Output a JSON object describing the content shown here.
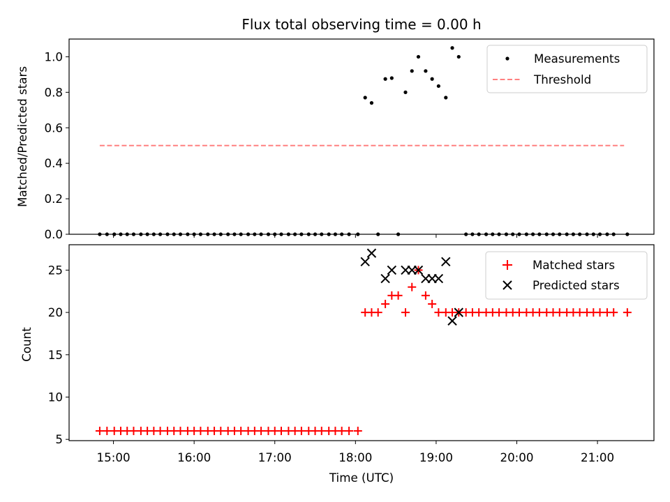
{
  "chart_data": {
    "title": "Flux total observing time = 0.00 h",
    "xlabel": "Time (UTC)",
    "x_unit": "hours UTC",
    "xlim": [
      14.45,
      21.7
    ],
    "xticks": [
      {
        "value": 15,
        "label": "15:00"
      },
      {
        "value": 16,
        "label": "16:00"
      },
      {
        "value": 17,
        "label": "17:00"
      },
      {
        "value": 18,
        "label": "18:00"
      },
      {
        "value": 19,
        "label": "19:00"
      },
      {
        "value": 20,
        "label": "20:00"
      },
      {
        "value": 21,
        "label": "21:00"
      }
    ],
    "top": {
      "type": "scatter",
      "ylabel": "Matched/Predicted stars",
      "ylim": [
        0,
        1.1
      ],
      "yticks": [
        "0.0",
        "0.2",
        "0.4",
        "0.6",
        "0.8",
        "1.0"
      ],
      "legend_position": "top-right",
      "series": [
        {
          "name": "Measurements",
          "marker": "dot",
          "color": "#000000",
          "points": [
            [
              14.83,
              0
            ],
            [
              14.92,
              0
            ],
            [
              15.01,
              0
            ],
            [
              15.09,
              0
            ],
            [
              15.17,
              0
            ],
            [
              15.25,
              0
            ],
            [
              15.34,
              0
            ],
            [
              15.42,
              0
            ],
            [
              15.5,
              0
            ],
            [
              15.58,
              0
            ],
            [
              15.67,
              0
            ],
            [
              15.75,
              0
            ],
            [
              15.83,
              0
            ],
            [
              15.92,
              0
            ],
            [
              16.0,
              0
            ],
            [
              16.08,
              0
            ],
            [
              16.17,
              0
            ],
            [
              16.25,
              0
            ],
            [
              16.33,
              0
            ],
            [
              16.42,
              0
            ],
            [
              16.5,
              0
            ],
            [
              16.58,
              0
            ],
            [
              16.67,
              0
            ],
            [
              16.75,
              0
            ],
            [
              16.83,
              0
            ],
            [
              16.92,
              0
            ],
            [
              17.0,
              0
            ],
            [
              17.08,
              0
            ],
            [
              17.17,
              0
            ],
            [
              17.25,
              0
            ],
            [
              17.33,
              0
            ],
            [
              17.42,
              0
            ],
            [
              17.5,
              0
            ],
            [
              17.58,
              0
            ],
            [
              17.67,
              0
            ],
            [
              17.75,
              0
            ],
            [
              17.83,
              0
            ],
            [
              17.92,
              0
            ],
            [
              18.03,
              0
            ],
            [
              18.12,
              0.77
            ],
            [
              18.2,
              0.74
            ],
            [
              18.28,
              0
            ],
            [
              18.37,
              0.875
            ],
            [
              18.45,
              0.88
            ],
            [
              18.53,
              0
            ],
            [
              18.62,
              0.8
            ],
            [
              18.7,
              0.92
            ],
            [
              18.78,
              1.0
            ],
            [
              18.87,
              0.92
            ],
            [
              18.95,
              0.875
            ],
            [
              19.03,
              0.835
            ],
            [
              19.12,
              0.77
            ],
            [
              19.2,
              1.05
            ],
            [
              19.28,
              1.0
            ],
            [
              19.37,
              0
            ],
            [
              19.45,
              0
            ],
            [
              19.53,
              0
            ],
            [
              19.62,
              0
            ],
            [
              19.7,
              0
            ],
            [
              19.78,
              0
            ],
            [
              19.87,
              0
            ],
            [
              19.95,
              0
            ],
            [
              20.03,
              0
            ],
            [
              20.12,
              0
            ],
            [
              20.2,
              0
            ],
            [
              20.28,
              0
            ],
            [
              20.37,
              0
            ],
            [
              20.45,
              0
            ],
            [
              20.53,
              0
            ],
            [
              20.62,
              0
            ],
            [
              20.7,
              0
            ],
            [
              20.78,
              0
            ],
            [
              20.87,
              0
            ],
            [
              20.95,
              0
            ],
            [
              21.03,
              0
            ],
            [
              21.12,
              0
            ],
            [
              21.2,
              0
            ],
            [
              21.37,
              0
            ]
          ]
        },
        {
          "name": "Threshold",
          "type": "line",
          "style": "dashed",
          "color": "#ff8080",
          "x": [
            14.83,
            21.33
          ],
          "y": [
            0.5,
            0.5
          ]
        }
      ]
    },
    "bottom": {
      "type": "scatter",
      "ylabel": "Count",
      "ylim": [
        4.85,
        28
      ],
      "yticks": [
        5,
        10,
        15,
        20,
        25
      ],
      "legend_position": "top-right",
      "series": [
        {
          "name": "Matched stars",
          "marker": "plus",
          "color": "#ff0000",
          "points": [
            [
              14.83,
              6
            ],
            [
              14.92,
              6
            ],
            [
              15.01,
              6
            ],
            [
              15.09,
              6
            ],
            [
              15.17,
              6
            ],
            [
              15.25,
              6
            ],
            [
              15.34,
              6
            ],
            [
              15.42,
              6
            ],
            [
              15.5,
              6
            ],
            [
              15.58,
              6
            ],
            [
              15.67,
              6
            ],
            [
              15.75,
              6
            ],
            [
              15.83,
              6
            ],
            [
              15.92,
              6
            ],
            [
              16.0,
              6
            ],
            [
              16.08,
              6
            ],
            [
              16.17,
              6
            ],
            [
              16.25,
              6
            ],
            [
              16.33,
              6
            ],
            [
              16.42,
              6
            ],
            [
              16.5,
              6
            ],
            [
              16.58,
              6
            ],
            [
              16.67,
              6
            ],
            [
              16.75,
              6
            ],
            [
              16.83,
              6
            ],
            [
              16.92,
              6
            ],
            [
              17.0,
              6
            ],
            [
              17.08,
              6
            ],
            [
              17.17,
              6
            ],
            [
              17.25,
              6
            ],
            [
              17.33,
              6
            ],
            [
              17.42,
              6
            ],
            [
              17.5,
              6
            ],
            [
              17.58,
              6
            ],
            [
              17.67,
              6
            ],
            [
              17.75,
              6
            ],
            [
              17.83,
              6
            ],
            [
              17.92,
              6
            ],
            [
              18.03,
              6
            ],
            [
              18.12,
              20
            ],
            [
              18.2,
              20
            ],
            [
              18.28,
              20
            ],
            [
              18.37,
              21
            ],
            [
              18.45,
              22
            ],
            [
              18.53,
              22
            ],
            [
              18.62,
              20
            ],
            [
              18.7,
              23
            ],
            [
              18.78,
              25
            ],
            [
              18.87,
              22
            ],
            [
              18.95,
              21
            ],
            [
              19.03,
              20
            ],
            [
              19.12,
              20
            ],
            [
              19.2,
              20
            ],
            [
              19.28,
              20
            ],
            [
              19.37,
              20
            ],
            [
              19.45,
              20
            ],
            [
              19.53,
              20
            ],
            [
              19.62,
              20
            ],
            [
              19.7,
              20
            ],
            [
              19.78,
              20
            ],
            [
              19.87,
              20
            ],
            [
              19.95,
              20
            ],
            [
              20.03,
              20
            ],
            [
              20.12,
              20
            ],
            [
              20.2,
              20
            ],
            [
              20.28,
              20
            ],
            [
              20.37,
              20
            ],
            [
              20.45,
              20
            ],
            [
              20.53,
              20
            ],
            [
              20.62,
              20
            ],
            [
              20.7,
              20
            ],
            [
              20.78,
              20
            ],
            [
              20.87,
              20
            ],
            [
              20.95,
              20
            ],
            [
              21.03,
              20
            ],
            [
              21.12,
              20
            ],
            [
              21.2,
              20
            ],
            [
              21.37,
              20
            ]
          ]
        },
        {
          "name": "Predicted stars",
          "marker": "x",
          "color": "#000000",
          "points": [
            [
              18.12,
              26
            ],
            [
              18.2,
              27
            ],
            [
              18.37,
              24
            ],
            [
              18.45,
              25
            ],
            [
              18.62,
              25
            ],
            [
              18.7,
              25
            ],
            [
              18.78,
              25
            ],
            [
              18.87,
              24
            ],
            [
              18.95,
              24
            ],
            [
              19.03,
              24
            ],
            [
              19.12,
              26
            ],
            [
              19.2,
              19
            ],
            [
              19.28,
              20
            ]
          ]
        }
      ]
    }
  }
}
